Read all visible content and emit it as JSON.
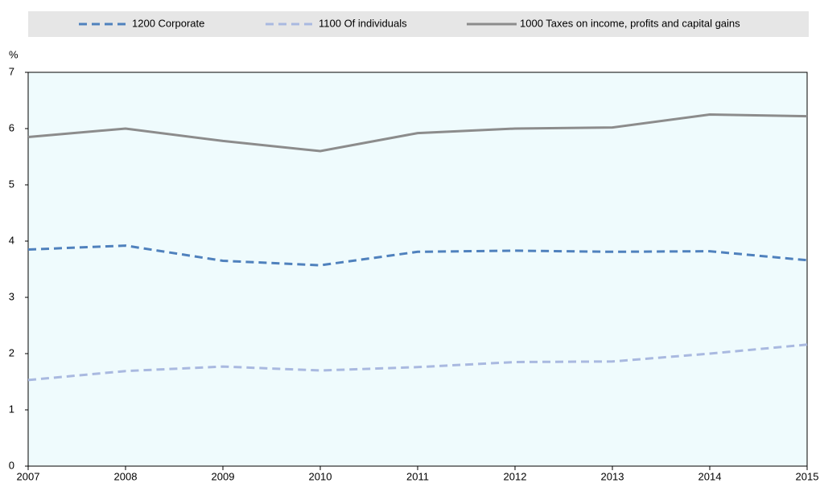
{
  "chart_data": {
    "type": "line",
    "y_unit": "%",
    "x": [
      2007,
      2008,
      2009,
      2010,
      2011,
      2012,
      2013,
      2014,
      2015
    ],
    "xlim": [
      2007,
      2015
    ],
    "xticks": [
      2007,
      2008,
      2009,
      2010,
      2011,
      2012,
      2013,
      2014,
      2015
    ],
    "ylim": [
      0,
      7
    ],
    "yticks": [
      0,
      1,
      2,
      3,
      4,
      5,
      6,
      7
    ],
    "grid": false,
    "legend": "top",
    "series": [
      {
        "name": "1200 Corporate",
        "color": "#4f81bd",
        "style": "dashed",
        "values": [
          3.85,
          3.92,
          3.65,
          3.57,
          3.81,
          3.83,
          3.81,
          3.82,
          3.66
        ]
      },
      {
        "name": "1100 Of individuals",
        "color": "#a9b9e0",
        "style": "dashed",
        "values": [
          1.53,
          1.69,
          1.77,
          1.7,
          1.76,
          1.85,
          1.86,
          2.0,
          2.16
        ]
      },
      {
        "name": "1000 Taxes on income, profits and capital gains",
        "color": "#8c8c8c",
        "style": "solid",
        "values": [
          5.85,
          6.0,
          5.78,
          5.6,
          5.92,
          6.0,
          6.02,
          6.25,
          6.22
        ]
      }
    ]
  }
}
